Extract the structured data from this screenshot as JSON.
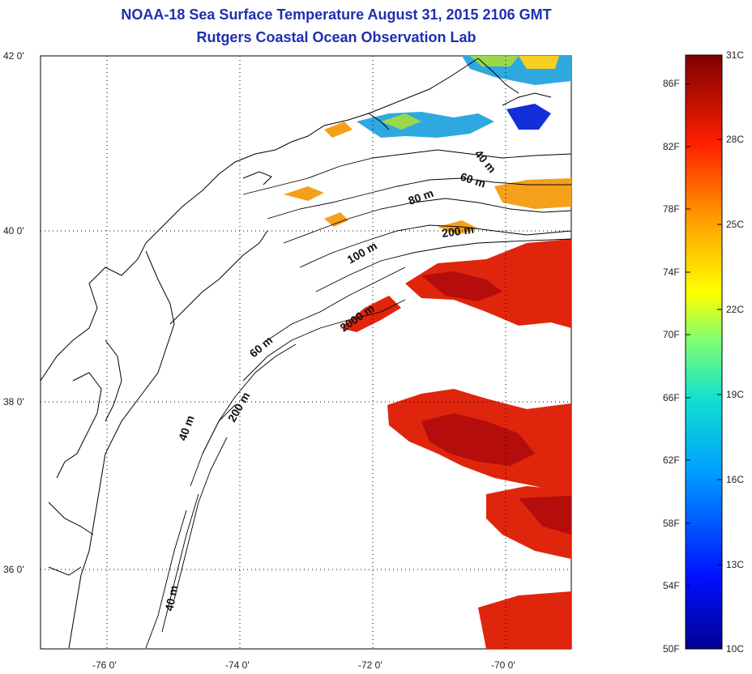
{
  "title": "NOAA-18 Sea Surface Temperature August 31, 2015 2106 GMT",
  "subtitle": "Rutgers Coastal Ocean Observation Lab",
  "lat_ticks": [
    "42 0'",
    "40 0'",
    "38 0'",
    "36 0'"
  ],
  "lon_ticks": [
    "-76 0'",
    "-74 0'",
    "-72 0'",
    "-70 0'"
  ],
  "colorbar": {
    "f_labels": [
      "86F",
      "82F",
      "78F",
      "74F",
      "70F",
      "66F",
      "62F",
      "58F",
      "54F",
      "50F"
    ],
    "c_labels": [
      "31C",
      "28C",
      "25C",
      "22C",
      "19C",
      "16C",
      "13C",
      "10C"
    ],
    "range_f": [
      50,
      88
    ],
    "range_c": [
      10,
      31
    ]
  },
  "contours": [
    "40 m",
    "60 m",
    "80 m",
    "200 m",
    "100 m",
    "2000 m",
    "60 m",
    "40 m",
    "200 m",
    "40 m"
  ],
  "colors": {
    "title": "#1f2fb0",
    "warm": "#e0250d",
    "hot": "#b50c0c",
    "orange": "#f5a01a",
    "cool": "#2fa8e0",
    "cold": "#1230d8"
  }
}
